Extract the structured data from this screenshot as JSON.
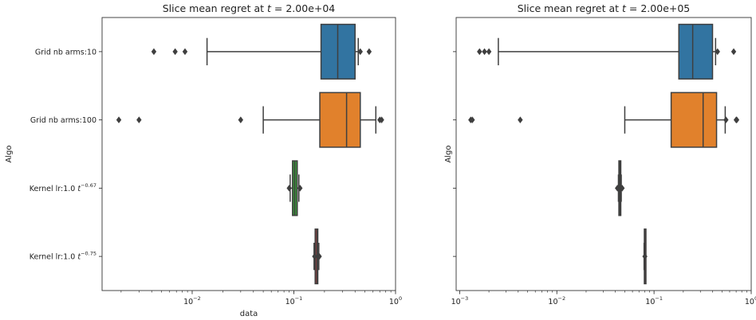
{
  "chart_data": [
    {
      "type": "box",
      "title_prefix": "Slice mean regret at ",
      "title_var": "t",
      "title_suffix": " = 2.00e+04",
      "xlabel": "data",
      "ylabel": "Algo",
      "xscale": "log",
      "xlim": [
        0.0013,
        1.0
      ],
      "xticks": [
        {
          "value": 0.01,
          "base": "10",
          "exp": "−2"
        },
        {
          "value": 0.1,
          "base": "10",
          "exp": "−1"
        },
        {
          "value": 1.0,
          "base": "10",
          "exp": "0"
        }
      ],
      "categories": [
        {
          "label": "Grid nb arms:10",
          "exp": ""
        },
        {
          "label": "Grid nb arms:100",
          "exp": ""
        },
        {
          "label": "Kernel lr:1.0 ",
          "var": "t",
          "exp": "−0.67"
        },
        {
          "label": "Kernel lr:1.0 ",
          "var": "t",
          "exp": "−0.75"
        }
      ],
      "boxes": [
        {
          "color": "#3274a1",
          "whisker_low": 0.014,
          "q1": 0.185,
          "median": 0.27,
          "q3": 0.4,
          "whisker_high": 0.43,
          "outliers": [
            0.0042,
            0.0068,
            0.0085,
            0.45,
            0.55
          ]
        },
        {
          "color": "#e1812c",
          "whisker_low": 0.05,
          "q1": 0.18,
          "median": 0.33,
          "q3": 0.45,
          "whisker_high": 0.64,
          "outliers": [
            0.0019,
            0.003,
            0.03,
            0.7,
            0.73
          ]
        },
        {
          "color": "#3a923a",
          "whisker_low": 0.092,
          "q1": 0.097,
          "median": 0.102,
          "q3": 0.108,
          "whisker_high": 0.112,
          "outliers": [
            0.09,
            0.115
          ]
        },
        {
          "color": "#c03d3e",
          "whisker_low": 0.158,
          "q1": 0.162,
          "median": 0.168,
          "q3": 0.172,
          "whisker_high": 0.176,
          "outliers": [
            0.16,
            0.178
          ]
        }
      ]
    },
    {
      "type": "box",
      "title_prefix": "Slice mean regret at ",
      "title_var": "t",
      "title_suffix": " = 2.00e+05",
      "xlabel": "",
      "ylabel": "Algo",
      "xscale": "log",
      "xlim": [
        0.00092,
        1.0
      ],
      "xticks": [
        {
          "value": 0.001,
          "base": "10",
          "exp": "−3"
        },
        {
          "value": 0.01,
          "base": "10",
          "exp": "−2"
        },
        {
          "value": 0.1,
          "base": "10",
          "exp": "−1"
        },
        {
          "value": 1.0,
          "base": "10",
          "exp": "0"
        }
      ],
      "categories": [
        {
          "label": "",
          "exp": ""
        },
        {
          "label": "",
          "exp": ""
        },
        {
          "label": "",
          "exp": ""
        },
        {
          "label": "",
          "exp": ""
        }
      ],
      "boxes": [
        {
          "color": "#3274a1",
          "whisker_low": 0.0025,
          "q1": 0.18,
          "median": 0.25,
          "q3": 0.4,
          "whisker_high": 0.43,
          "outliers": [
            0.0016,
            0.0018,
            0.002,
            0.45,
            0.66
          ]
        },
        {
          "color": "#e1812c",
          "whisker_low": 0.05,
          "q1": 0.15,
          "median": 0.32,
          "q3": 0.44,
          "whisker_high": 0.54,
          "outliers": [
            0.0013,
            0.00135,
            0.0042,
            0.55,
            0.7,
            0.71
          ]
        },
        {
          "color": "#3a923a",
          "whisker_low": 0.043,
          "q1": 0.0435,
          "median": 0.0445,
          "q3": 0.0455,
          "whisker_high": 0.046,
          "outliers": [
            0.042,
            0.047
          ]
        },
        {
          "color": "#c03d3e",
          "whisker_low": 0.079,
          "q1": 0.0795,
          "median": 0.0805,
          "q3": 0.0815,
          "whisker_high": 0.082,
          "outliers": [
            0.0805
          ]
        }
      ]
    }
  ]
}
